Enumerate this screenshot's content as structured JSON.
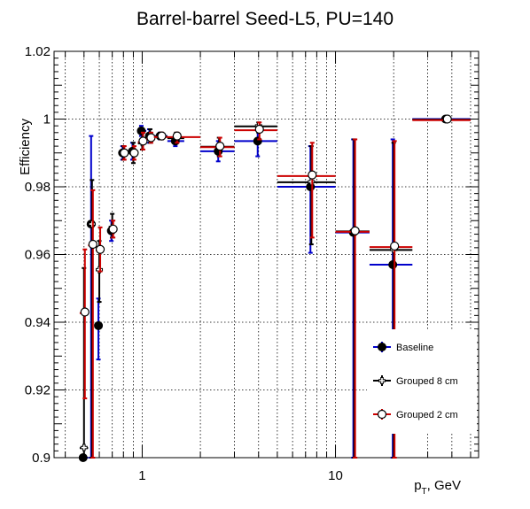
{
  "chart_data": {
    "type": "scatter",
    "title": "Barrel-barrel Seed-L5, PU=140",
    "xlabel_main": "p",
    "xlabel_sub": "T",
    "xlabel_tail": ", GeV",
    "ylabel": "Efficiency",
    "xscale": "log",
    "xlim": [
      0.35,
      55
    ],
    "ylim": [
      0.9,
      1.02
    ],
    "grid": true,
    "legend_position": "bottom-right",
    "x_ticks": [
      {
        "value": 1,
        "label": "1"
      },
      {
        "value": 10,
        "label": "10"
      }
    ],
    "y_ticks": [
      {
        "value": 0.9,
        "label": "0.9"
      },
      {
        "value": 0.92,
        "label": "0.92"
      },
      {
        "value": 0.94,
        "label": "0.94"
      },
      {
        "value": 0.96,
        "label": "0.96"
      },
      {
        "value": 0.98,
        "label": "0.98"
      },
      {
        "value": 1.0,
        "label": "1"
      },
      {
        "value": 1.02,
        "label": "1.02"
      }
    ],
    "series": [
      {
        "name": "Baseline",
        "color": "#0000cc",
        "marker": "filled-circle",
        "points": [
          {
            "x": 0.5,
            "y": 0.9,
            "xlo": 0.475,
            "xhi": 0.525,
            "ylo": 0.9,
            "yhi": 0.9
          },
          {
            "x": 0.55,
            "y": 0.969,
            "xlo": 0.525,
            "xhi": 0.575,
            "ylo": 0.9,
            "yhi": 0.995
          },
          {
            "x": 0.6,
            "y": 0.939,
            "xlo": 0.575,
            "xhi": 0.625,
            "ylo": 0.929,
            "yhi": 0.947
          },
          {
            "x": 0.7,
            "y": 0.967,
            "xlo": 0.675,
            "xhi": 0.725,
            "ylo": 0.964,
            "yhi": 0.97
          },
          {
            "x": 0.8,
            "y": 0.99,
            "xlo": 0.775,
            "xhi": 0.825,
            "ylo": 0.988,
            "yhi": 0.992
          },
          {
            "x": 0.9,
            "y": 0.9905,
            "xlo": 0.875,
            "xhi": 0.925,
            "ylo": 0.988,
            "yhi": 0.993
          },
          {
            "x": 1.0,
            "y": 0.9965,
            "xlo": 0.95,
            "xhi": 1.05,
            "ylo": 0.995,
            "yhi": 0.998
          },
          {
            "x": 1.1,
            "y": 0.995,
            "xlo": 1.05,
            "xhi": 1.15,
            "ylo": 0.993,
            "yhi": 0.997
          },
          {
            "x": 1.25,
            "y": 0.995,
            "xlo": 1.15,
            "xhi": 1.35,
            "ylo": 0.994,
            "yhi": 0.996
          },
          {
            "x": 1.5,
            "y": 0.9935,
            "xlo": 1.35,
            "xhi": 1.65,
            "ylo": 0.992,
            "yhi": 0.995
          },
          {
            "x": 2.5,
            "y": 0.9905,
            "xlo": 2.0,
            "xhi": 3.0,
            "ylo": 0.9875,
            "yhi": 0.9935
          },
          {
            "x": 4.0,
            "y": 0.9935,
            "xlo": 3.0,
            "xhi": 5.0,
            "ylo": 0.989,
            "yhi": 0.998
          },
          {
            "x": 7.5,
            "y": 0.98,
            "xlo": 5.0,
            "xhi": 10.0,
            "ylo": 0.9605,
            "yhi": 0.992
          },
          {
            "x": 12.5,
            "y": 0.9665,
            "xlo": 10.0,
            "xhi": 15.0,
            "ylo": 0.9,
            "yhi": 0.994
          },
          {
            "x": 20.0,
            "y": 0.957,
            "xlo": 15.0,
            "xhi": 25.0,
            "ylo": 0.9,
            "yhi": 0.994
          },
          {
            "x": 37.5,
            "y": 1.0,
            "xlo": 25.0,
            "xhi": 50.0,
            "ylo": 1.0,
            "yhi": 1.0
          }
        ]
      },
      {
        "name": "Grouped 8 cm",
        "color": "#000000",
        "marker": "open-cross",
        "points": [
          {
            "x": 0.5,
            "y": 0.903,
            "xlo": 0.475,
            "xhi": 0.525,
            "ylo": 0.9,
            "yhi": 0.956
          },
          {
            "x": 0.55,
            "y": 0.969,
            "xlo": 0.525,
            "xhi": 0.575,
            "ylo": 0.9,
            "yhi": 0.982
          },
          {
            "x": 0.6,
            "y": 0.9555,
            "xlo": 0.575,
            "xhi": 0.625,
            "ylo": 0.946,
            "yhi": 0.964
          },
          {
            "x": 0.7,
            "y": 0.968,
            "xlo": 0.675,
            "xhi": 0.725,
            "ylo": 0.965,
            "yhi": 0.972
          },
          {
            "x": 0.8,
            "y": 0.99,
            "xlo": 0.775,
            "xhi": 0.825,
            "ylo": 0.988,
            "yhi": 0.992
          },
          {
            "x": 0.9,
            "y": 0.99,
            "xlo": 0.875,
            "xhi": 0.925,
            "ylo": 0.987,
            "yhi": 0.993
          },
          {
            "x": 1.0,
            "y": 0.993,
            "xlo": 0.95,
            "xhi": 1.05,
            "ylo": 0.991,
            "yhi": 0.996
          },
          {
            "x": 1.1,
            "y": 0.995,
            "xlo": 1.05,
            "xhi": 1.15,
            "ylo": 0.993,
            "yhi": 0.997
          },
          {
            "x": 1.25,
            "y": 0.995,
            "xlo": 1.15,
            "xhi": 1.35,
            "ylo": 0.994,
            "yhi": 0.996
          },
          {
            "x": 1.5,
            "y": 0.9945,
            "xlo": 1.35,
            "xhi": 1.65,
            "ylo": 0.993,
            "yhi": 0.996
          },
          {
            "x": 2.5,
            "y": 0.992,
            "xlo": 2.0,
            "xhi": 3.0,
            "ylo": 0.989,
            "yhi": 0.9945
          },
          {
            "x": 4.0,
            "y": 0.998,
            "xlo": 3.0,
            "xhi": 5.0,
            "ylo": 0.996,
            "yhi": 0.999
          },
          {
            "x": 7.5,
            "y": 0.9815,
            "xlo": 5.0,
            "xhi": 10.0,
            "ylo": 0.963,
            "yhi": 0.992
          },
          {
            "x": 12.5,
            "y": 0.967,
            "xlo": 10.0,
            "xhi": 15.0,
            "ylo": 0.9,
            "yhi": 0.994
          },
          {
            "x": 20.0,
            "y": 0.9615,
            "xlo": 15.0,
            "xhi": 25.0,
            "ylo": 0.9,
            "yhi": 0.993
          },
          {
            "x": 37.5,
            "y": 1.0,
            "xlo": 25.0,
            "xhi": 50.0,
            "ylo": 1.0,
            "yhi": 1.0
          }
        ]
      },
      {
        "name": "Grouped 2 cm",
        "color": "#cc0000",
        "marker": "open-circle",
        "points": [
          {
            "x": 0.5,
            "y": 0.943,
            "xlo": 0.475,
            "xhi": 0.525,
            "ylo": 0.9175,
            "yhi": 0.9615
          },
          {
            "x": 0.55,
            "y": 0.963,
            "xlo": 0.525,
            "xhi": 0.575,
            "ylo": 0.9,
            "yhi": 0.979
          },
          {
            "x": 0.6,
            "y": 0.9615,
            "xlo": 0.575,
            "xhi": 0.625,
            "ylo": 0.955,
            "yhi": 0.968
          },
          {
            "x": 0.7,
            "y": 0.9675,
            "xlo": 0.675,
            "xhi": 0.725,
            "ylo": 0.965,
            "yhi": 0.97
          },
          {
            "x": 0.8,
            "y": 0.99,
            "xlo": 0.775,
            "xhi": 0.825,
            "ylo": 0.988,
            "yhi": 0.992
          },
          {
            "x": 0.9,
            "y": 0.99,
            "xlo": 0.875,
            "xhi": 0.925,
            "ylo": 0.988,
            "yhi": 0.992
          },
          {
            "x": 1.0,
            "y": 0.9935,
            "xlo": 0.95,
            "xhi": 1.05,
            "ylo": 0.991,
            "yhi": 0.996
          },
          {
            "x": 1.1,
            "y": 0.9945,
            "xlo": 1.05,
            "xhi": 1.15,
            "ylo": 0.993,
            "yhi": 0.996
          },
          {
            "x": 1.25,
            "y": 0.995,
            "xlo": 1.15,
            "xhi": 1.35,
            "ylo": 0.994,
            "yhi": 0.996
          },
          {
            "x": 1.5,
            "y": 0.995,
            "xlo": 1.35,
            "xhi": 2.0,
            "ylo": 0.993,
            "yhi": 0.996
          },
          {
            "x": 2.5,
            "y": 0.992,
            "xlo": 2.0,
            "xhi": 3.0,
            "ylo": 0.989,
            "yhi": 0.9945
          },
          {
            "x": 4.0,
            "y": 0.997,
            "xlo": 3.0,
            "xhi": 5.0,
            "ylo": 0.994,
            "yhi": 0.999
          },
          {
            "x": 7.5,
            "y": 0.9835,
            "xlo": 5.0,
            "xhi": 10.0,
            "ylo": 0.965,
            "yhi": 0.993
          },
          {
            "x": 12.5,
            "y": 0.967,
            "xlo": 10.0,
            "xhi": 15.0,
            "ylo": 0.9,
            "yhi": 0.994
          },
          {
            "x": 20.0,
            "y": 0.9625,
            "xlo": 15.0,
            "xhi": 25.0,
            "ylo": 0.9,
            "yhi": 0.9935
          },
          {
            "x": 37.5,
            "y": 1.0,
            "xlo": 25.0,
            "xhi": 50.0,
            "ylo": 1.0,
            "yhi": 1.0
          }
        ]
      }
    ]
  }
}
